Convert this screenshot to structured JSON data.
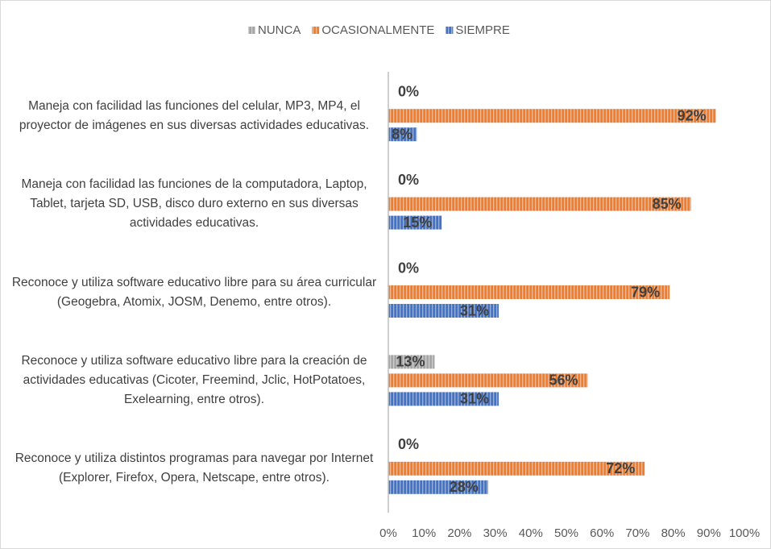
{
  "chart_data": {
    "type": "bar",
    "orientation": "horizontal",
    "categories": [
      "Maneja con facilidad las funciones del celular, MP3, MP4, el proyector de imágenes en sus diversas actividades educativas.",
      "Maneja con facilidad las funciones de la computadora, Laptop, Tablet, tarjeta SD, USB, disco duro externo en sus diversas actividades educativas.",
      "Reconoce y utiliza software educativo libre para su área curricular (Geogebra, Atomix, JOSM, Denemo, entre otros).",
      "Reconoce y utiliza software educativo libre para la creación de actividades educativas (Cicoter, Freemind, Jclic, HotPotatoes, Exelearning, entre otros).",
      "Reconoce y utiliza distintos programas para navegar por Internet (Explorer, Firefox, Opera, Netscape, entre otros)."
    ],
    "series": [
      {
        "name": "NUNCA",
        "color": "#a5a5a5",
        "values": [
          0,
          0,
          0,
          13,
          0
        ],
        "value_labels": [
          "0%",
          "0%",
          "0%",
          "13%",
          "0%"
        ]
      },
      {
        "name": "OCASIONALMENTE",
        "color": "#ed7d31",
        "values": [
          92,
          85,
          79,
          56,
          72
        ],
        "value_labels": [
          "92%",
          "85%",
          "79%",
          "56%",
          "72%"
        ]
      },
      {
        "name": "SIEMPRE",
        "color": "#4472c4",
        "values": [
          8,
          15,
          31,
          31,
          28
        ],
        "value_labels": [
          "8%",
          "15%",
          "31%",
          "31%",
          "28%"
        ]
      }
    ],
    "xlim": [
      0,
      100
    ],
    "xticks": [
      {
        "value": 0,
        "label": "0%"
      },
      {
        "value": 10,
        "label": "10%"
      },
      {
        "value": 20,
        "label": "20%"
      },
      {
        "value": 30,
        "label": "30%"
      },
      {
        "value": 40,
        "label": "40%"
      },
      {
        "value": 50,
        "label": "50%"
      },
      {
        "value": 60,
        "label": "60%"
      },
      {
        "value": 70,
        "label": "70%"
      },
      {
        "value": 80,
        "label": "80%"
      },
      {
        "value": 90,
        "label": "90%"
      },
      {
        "value": 100,
        "label": "100%"
      }
    ],
    "legend": "top"
  }
}
